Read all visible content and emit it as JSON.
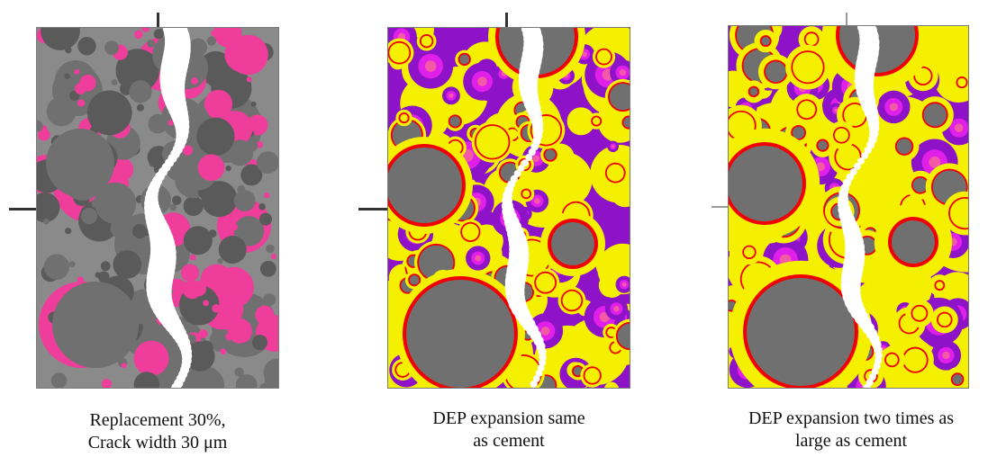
{
  "figure": {
    "captions": [
      {
        "line1": "Replacement 30%,",
        "line2": "Crack width  30 μm"
      },
      {
        "line1": "DEP expansion same",
        "line2": "as cement"
      },
      {
        "line1": "DEP expansion two times as",
        "line2": "large as cement"
      }
    ]
  },
  "colors": {
    "cement_grain": "#707070",
    "cement_grain_dark": "#5a5a5a",
    "additive_grain": "#ee3d9a",
    "expansion_layer": "#f5f000",
    "reaction_ring": "#f00000",
    "dep_particle": "#8e12c8",
    "dep_inner": "#e020e8",
    "dep_core": "#f25aa8",
    "crack": "#ffffff"
  }
}
